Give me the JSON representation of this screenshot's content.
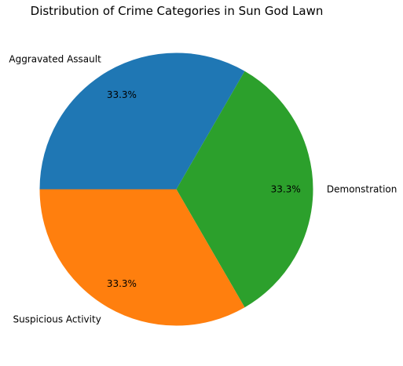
{
  "chart_data": {
    "type": "pie",
    "title": "Distribution of Crime Categories in Sun God Lawn",
    "start_angle_deg": 180,
    "direction": "clockwise",
    "slices": [
      {
        "label": "Aggravated Assault",
        "value": 33.3,
        "pct_label": "33.3%",
        "color": "#1f77b4"
      },
      {
        "label": "Demonstration",
        "value": 33.3,
        "pct_label": "33.3%",
        "color": "#2ca02c"
      },
      {
        "label": "Suspicious Activity",
        "value": 33.3,
        "pct_label": "33.3%",
        "color": "#ff7f0e"
      }
    ]
  }
}
